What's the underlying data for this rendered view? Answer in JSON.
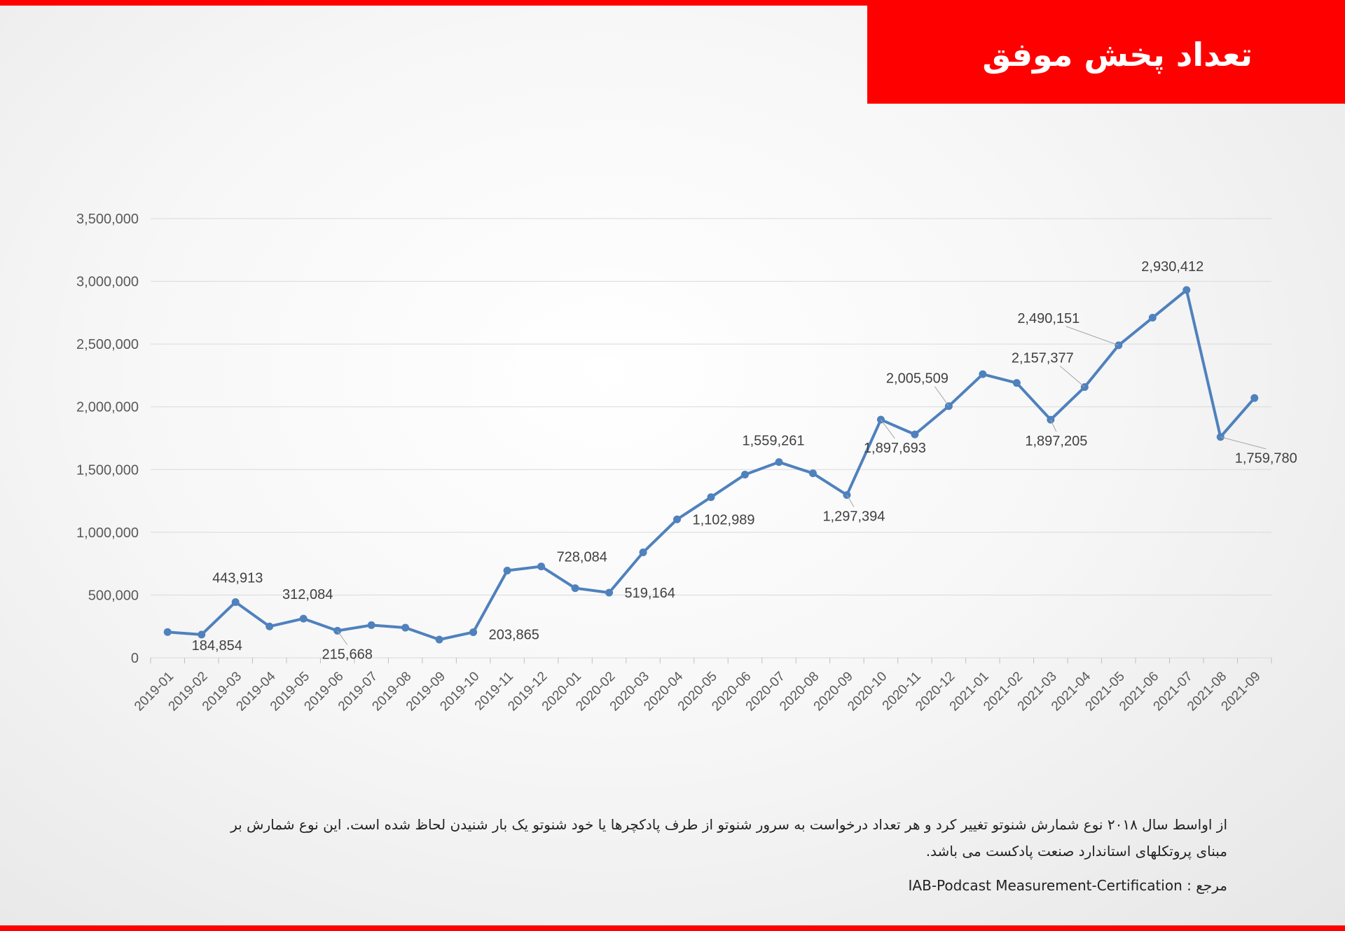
{
  "title": "تعداد پخش موفق",
  "note": "از اواسط سال ۲۰۱۸ نوع شمارش شنوتو تغییر کرد و هر تعداد درخواست به سرور شنوتو از طرف پادکچرها یا خود شنوتو یک بار شنیدن لحاظ شده است. این نوع شمارش بر مبنای پروتکلهای استاندارد صنعت پادکست می باشد.",
  "reference": {
    "label": "مرجع :",
    "source": "IAB-Podcast  Measurement-Certification"
  },
  "colors": {
    "accent": "#ff0000",
    "line": "#4f81bd",
    "grid": "#d9d9d9"
  },
  "chart_data": {
    "type": "line",
    "categories": [
      "2019-01",
      "2019-02",
      "2019-03",
      "2019-04",
      "2019-05",
      "2019-06",
      "2019-07",
      "2019-08",
      "2019-09",
      "2019-10",
      "2019-11",
      "2019-12",
      "2020-01",
      "2020-02",
      "2020-03",
      "2020-04",
      "2020-05",
      "2020-06",
      "2020-07",
      "2020-08",
      "2020-09",
      "2020-10",
      "2020-11",
      "2020-12",
      "2021-01",
      "2021-02",
      "2021-03",
      "2021-04",
      "2021-05",
      "2021-06",
      "2021-07",
      "2021-08",
      "2021-09"
    ],
    "series": [
      {
        "values": [
          205000,
          184854,
          443913,
          250000,
          312084,
          215668,
          260000,
          240000,
          145000,
          203865,
          695000,
          728084,
          555000,
          519164,
          840000,
          1102989,
          1280000,
          1460000,
          1559261,
          1470000,
          1297394,
          1897693,
          1780000,
          2005509,
          2260000,
          2190000,
          1897205,
          2157377,
          2490151,
          2710000,
          2930412,
          1759780,
          2070000
        ]
      }
    ],
    "data_labels": [
      {
        "index": 1,
        "text": "184,854"
      },
      {
        "index": 2,
        "text": "443,913"
      },
      {
        "index": 4,
        "text": "312,084"
      },
      {
        "index": 5,
        "text": "215,668"
      },
      {
        "index": 9,
        "text": "203,865"
      },
      {
        "index": 11,
        "text": "728,084"
      },
      {
        "index": 13,
        "text": "519,164"
      },
      {
        "index": 15,
        "text": "1,102,989"
      },
      {
        "index": 18,
        "text": "1,559,261"
      },
      {
        "index": 20,
        "text": "1,297,394"
      },
      {
        "index": 21,
        "text": "1,897,693"
      },
      {
        "index": 23,
        "text": "2,005,509"
      },
      {
        "index": 26,
        "text": "1,897,205"
      },
      {
        "index": 27,
        "text": "2,157,377"
      },
      {
        "index": 28,
        "text": "2,490,151"
      },
      {
        "index": 30,
        "text": "2,930,412"
      },
      {
        "index": 31,
        "text": "1,759,780"
      }
    ],
    "yticks": [
      0,
      500000,
      1000000,
      1500000,
      2000000,
      2500000,
      3000000,
      3500000
    ],
    "ytick_labels": [
      "0",
      "500,000",
      "1,000,000",
      "1,500,000",
      "2,000,000",
      "2,500,000",
      "3,000,000",
      "3,500,000"
    ],
    "ylim": [
      0,
      3500000
    ],
    "grid": true,
    "legend": false
  }
}
